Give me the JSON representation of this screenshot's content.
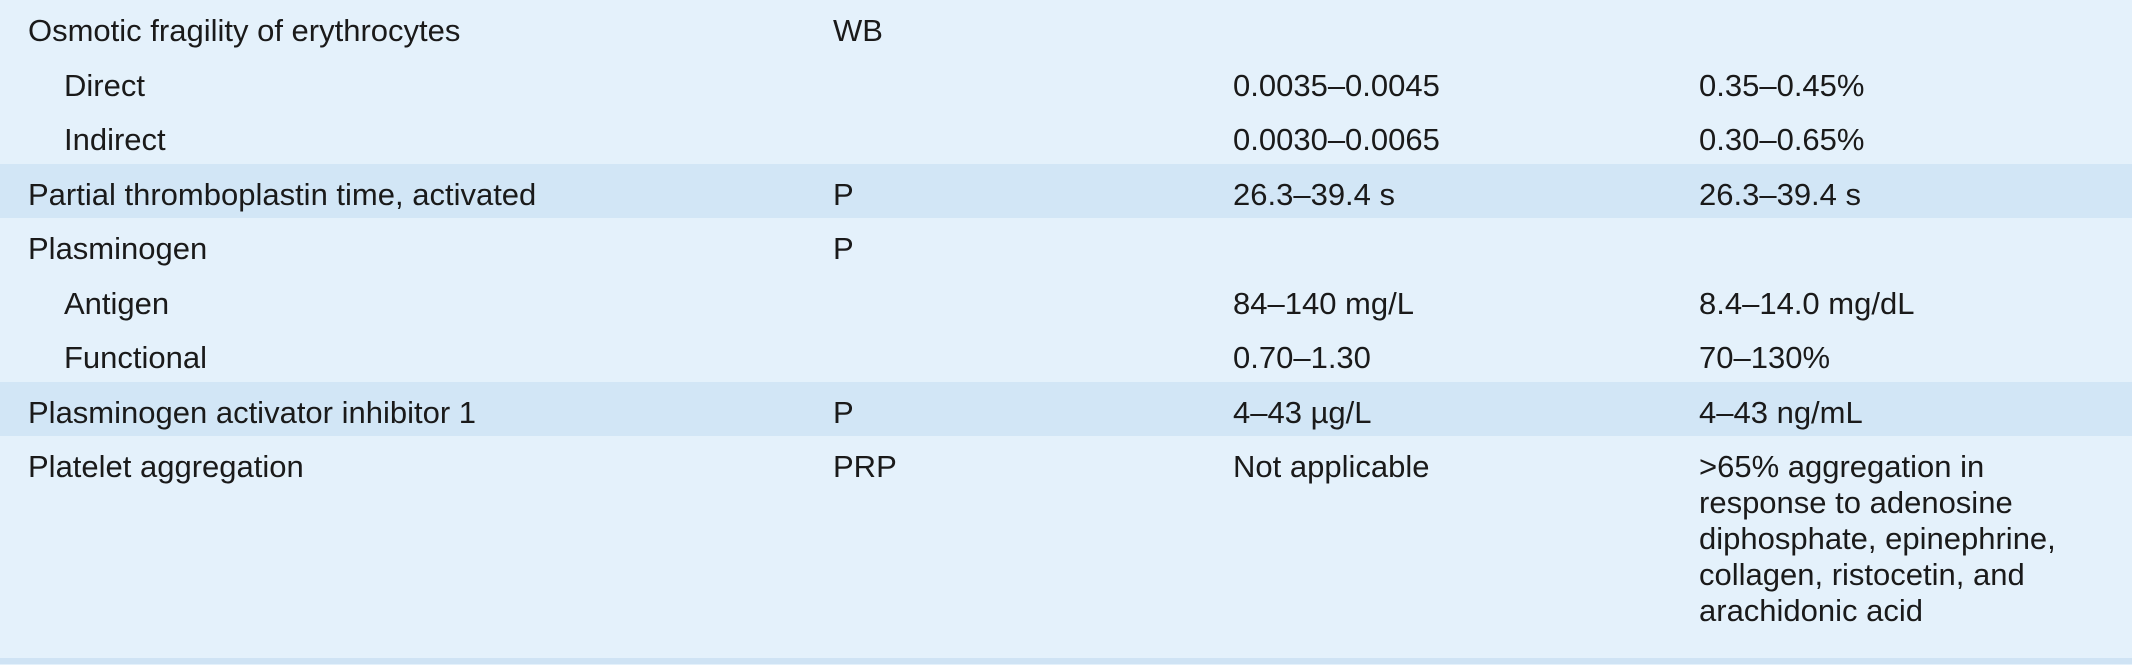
{
  "rows": [
    {
      "test": "Osmotic fragility of erythrocytes",
      "specimen": "WB",
      "si": "",
      "conventional": ""
    },
    {
      "test": "Direct",
      "specimen": "",
      "si": "0.0035–0.0045",
      "conventional": "0.35–0.45%"
    },
    {
      "test": "Indirect",
      "specimen": "",
      "si": "0.0030–0.0065",
      "conventional": "0.30–0.65%"
    },
    {
      "test": "Partial thromboplastin time, activated",
      "specimen": "P",
      "si": "26.3–39.4 s",
      "conventional": "26.3–39.4 s"
    },
    {
      "test": "Plasminogen",
      "specimen": "P",
      "si": "",
      "conventional": ""
    },
    {
      "test": "Antigen",
      "specimen": "",
      "si": "84–140 mg/L",
      "conventional": "8.4–14.0 mg/dL"
    },
    {
      "test": "Functional",
      "specimen": "",
      "si": "0.70–1.30",
      "conventional": "70–130%"
    },
    {
      "test": "Plasminogen activator inhibitor 1",
      "specimen": "P",
      "si": "4–43 µg/L",
      "conventional": "4–43 ng/mL"
    },
    {
      "test": "Platelet aggregation",
      "specimen": "PRP",
      "si": "Not applicable",
      "conventional": ">65% aggregation in response to adenosine diphosphate, epinephrine, collagen, ristocetin, and arachidonic acid"
    }
  ]
}
